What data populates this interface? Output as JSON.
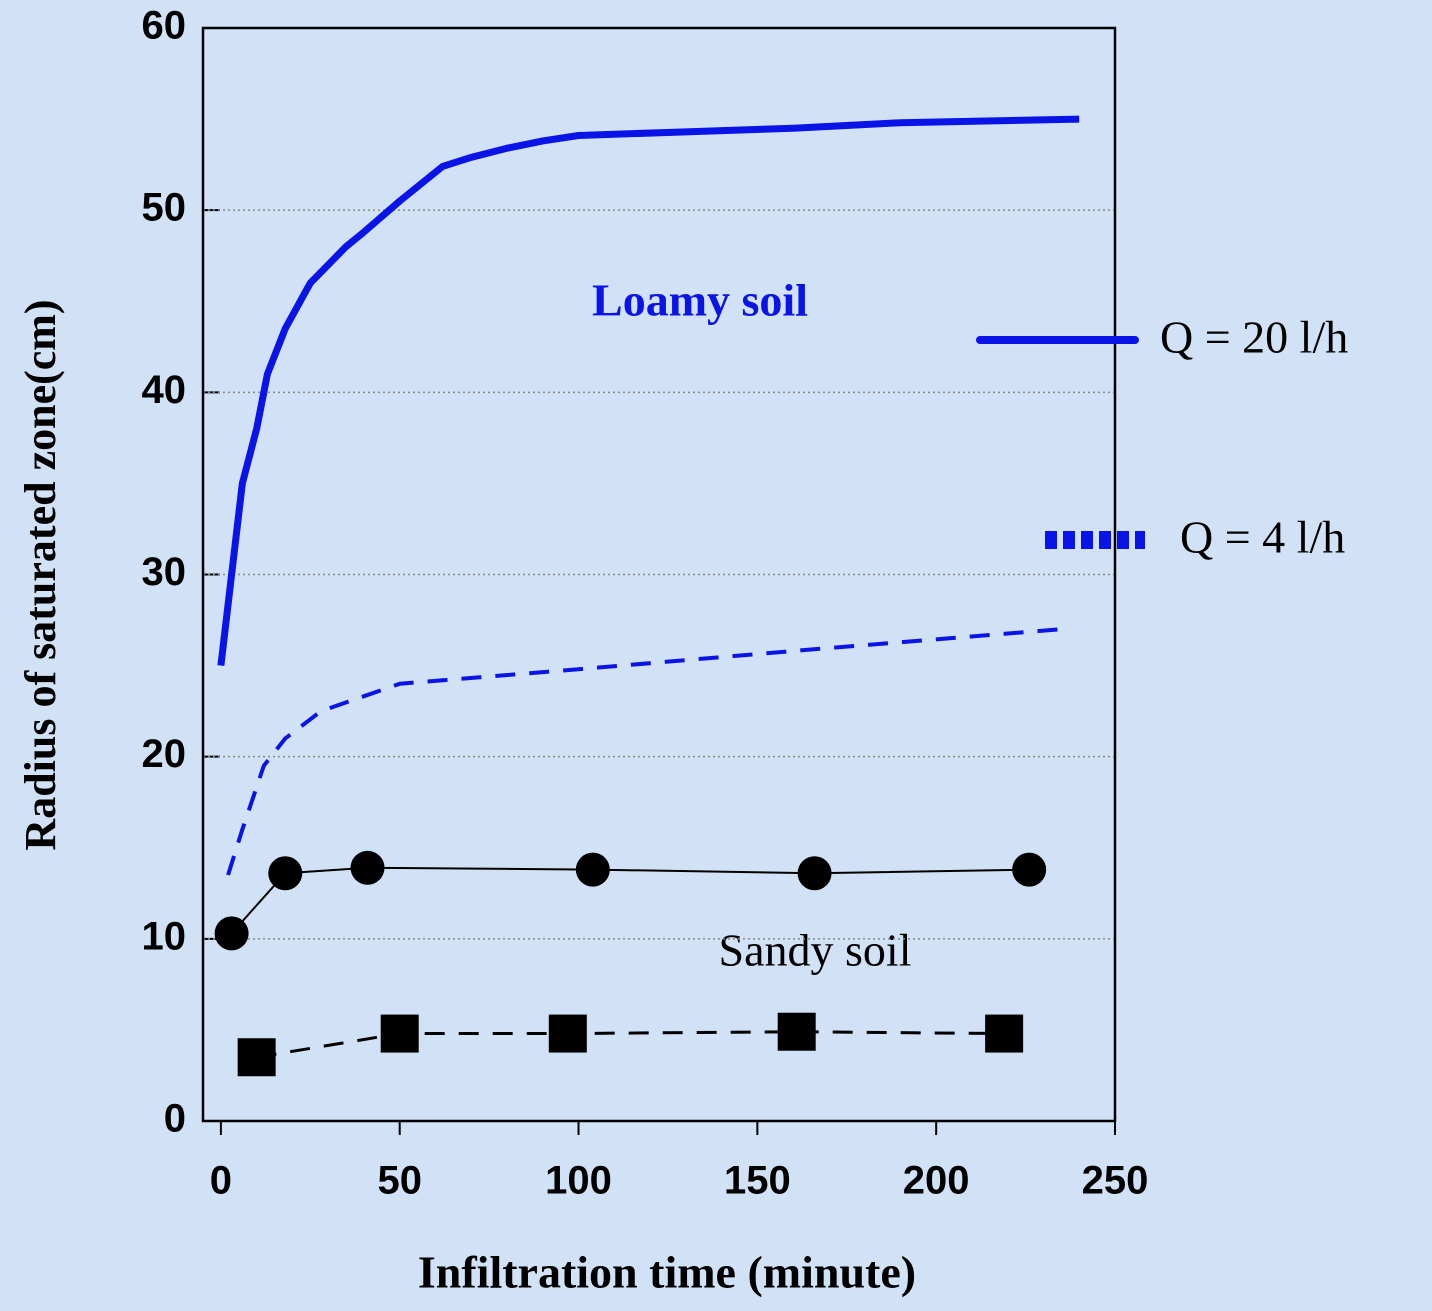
{
  "chart_data": {
    "type": "line",
    "xlabel": "Infiltration time (minute)",
    "ylabel": "Radius of saturated zone(cm)",
    "xlim": [
      -5,
      250
    ],
    "xticks": [
      0,
      50,
      100,
      150,
      200,
      250
    ],
    "ylim": [
      0,
      60
    ],
    "yticks": [
      0,
      10,
      20,
      30,
      40,
      50,
      60
    ],
    "grid": true,
    "annotations": [
      "Loamy soil",
      "Sandy soil"
    ],
    "legend": [
      {
        "name": "Q = 20 l/h",
        "color": "#0a14e6",
        "style": "solid"
      },
      {
        "name": "Q = 4 l/h",
        "color": "#0a14e6",
        "style": "dotted"
      }
    ],
    "series": [
      {
        "color": "#0a14e6",
        "style": "solid",
        "width": 7,
        "marker": "none",
        "x": [
          0,
          3,
          6,
          10,
          13,
          18,
          25,
          35,
          40,
          50,
          62,
          70,
          80,
          90,
          100,
          130,
          160,
          190,
          240
        ],
        "values": [
          25,
          30,
          35,
          38,
          41,
          43.5,
          46,
          48,
          48.8,
          50.5,
          52.4,
          52.9,
          53.4,
          53.8,
          54.1,
          54.3,
          54.5,
          54.8,
          55
        ]
      },
      {
        "color": "#0a14e6",
        "style": "dashed",
        "width": 4,
        "marker": "none",
        "x": [
          2,
          6,
          12,
          18,
          28,
          50,
          100,
          160,
          235
        ],
        "values": [
          13.5,
          16,
          19.5,
          21,
          22.5,
          24,
          24.8,
          25.8,
          27
        ]
      },
      {
        "color": "#000000",
        "style": "solid",
        "width": 2,
        "marker": "circle",
        "x": [
          3,
          18,
          41,
          104,
          166,
          226
        ],
        "values": [
          10.3,
          13.6,
          13.9,
          13.8,
          13.6,
          13.8
        ]
      },
      {
        "color": "#000000",
        "style": "dashed",
        "width": 3,
        "marker": "square",
        "x": [
          10,
          50,
          97,
          161,
          219
        ],
        "values": [
          3.5,
          4.8,
          4.8,
          4.9,
          4.8
        ]
      }
    ]
  }
}
